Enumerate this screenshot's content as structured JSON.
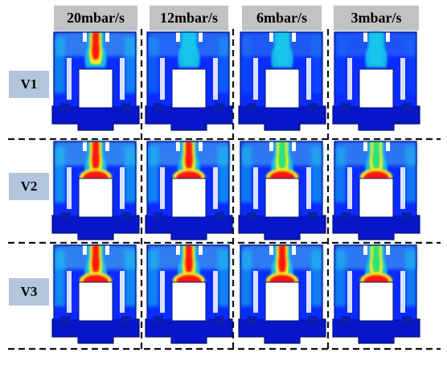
{
  "columns": [
    "20mbar/s",
    "12mbar/s",
    "6mbar/s",
    "3mbar/s"
  ],
  "rows": [
    "V1",
    "V2",
    "V3"
  ],
  "colors": {
    "background_blue": "#0a2cff",
    "deep_blue": "#0616c8",
    "cyan": "#18c6ea",
    "light_blue": "#3a96ee",
    "green": "#2fe07a",
    "yellow": "#f4f21e",
    "red": "#ff1208",
    "header_gray": "#c2c2c2",
    "label_blue": "#b1c6dd"
  },
  "intensity": [
    [
      0.9,
      0.5,
      0.25,
      0.15
    ],
    [
      1.0,
      0.95,
      0.85,
      0.8
    ],
    [
      1.0,
      0.95,
      0.9,
      0.85
    ]
  ]
}
